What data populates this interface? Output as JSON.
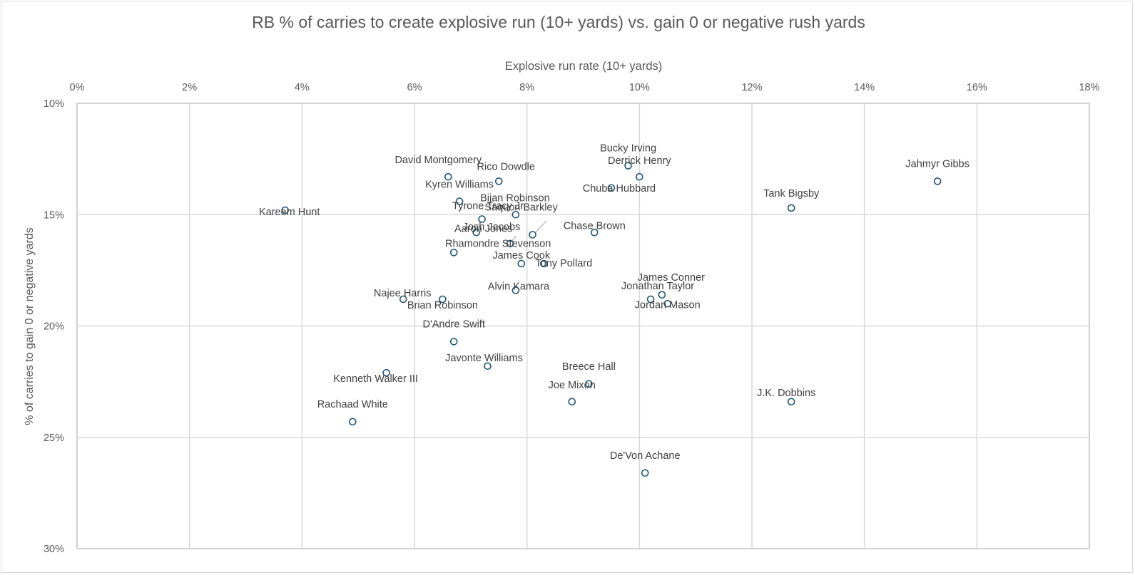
{
  "chart_data": {
    "type": "scatter",
    "title": "RB % of carries to create explosive run (10+ yards) vs. gain 0 or negative rush yards",
    "xlabel": "Explosive run rate (10+ yards)",
    "ylabel": "% of carries to gain 0 or negative yards",
    "xlim": [
      0,
      18
    ],
    "ylim": [
      10,
      30
    ],
    "y_reversed": true,
    "x_axis_position": "top",
    "grid": true,
    "x_ticks": [
      "0%",
      "2%",
      "4%",
      "6%",
      "8%",
      "10%",
      "12%",
      "14%",
      "16%",
      "18%"
    ],
    "y_ticks": [
      "10%",
      "15%",
      "20%",
      "25%",
      "30%"
    ],
    "marker_color": "#1f5673",
    "points": [
      {
        "name": "Kareem Hunt",
        "x": 3.7,
        "y": 14.8
      },
      {
        "name": "David Montgomery",
        "x": 6.6,
        "y": 13.3
      },
      {
        "name": "Rico Dowdle",
        "x": 7.5,
        "y": 13.5
      },
      {
        "name": "Kyren Williams",
        "x": 6.8,
        "y": 14.4
      },
      {
        "name": "Tyrone Tracy Jr.",
        "x": 7.2,
        "y": 15.2
      },
      {
        "name": "Bijan Robinson",
        "x": 7.8,
        "y": 15.0
      },
      {
        "name": "Saquon Barkley",
        "x": 8.1,
        "y": 15.9
      },
      {
        "name": "Aaron Jones",
        "x": 7.1,
        "y": 15.8
      },
      {
        "name": "Josh Jacobs",
        "x": 7.7,
        "y": 16.3
      },
      {
        "name": "Rhamondre Stevenson",
        "x": 6.7,
        "y": 16.7
      },
      {
        "name": "James Cook",
        "x": 7.9,
        "y": 17.2
      },
      {
        "name": "Tony Pollard",
        "x": 8.3,
        "y": 17.2
      },
      {
        "name": "Alvin Kamara",
        "x": 7.8,
        "y": 18.4
      },
      {
        "name": "Najee Harris",
        "x": 5.8,
        "y": 18.8
      },
      {
        "name": "Brian Robinson",
        "x": 6.5,
        "y": 18.8
      },
      {
        "name": "D'Andre Swift",
        "x": 6.7,
        "y": 20.7
      },
      {
        "name": "Javonte Williams",
        "x": 7.3,
        "y": 21.8
      },
      {
        "name": "Kenneth Walker III",
        "x": 5.5,
        "y": 22.1
      },
      {
        "name": "Rachaad White",
        "x": 4.9,
        "y": 24.3
      },
      {
        "name": "Bucky Irving",
        "x": 9.8,
        "y": 12.8
      },
      {
        "name": "Derrick Henry",
        "x": 10.0,
        "y": 13.3
      },
      {
        "name": "Chuba Hubbard",
        "x": 9.5,
        "y": 13.8
      },
      {
        "name": "Chase Brown",
        "x": 9.2,
        "y": 15.8
      },
      {
        "name": "James Conner",
        "x": 10.4,
        "y": 18.6
      },
      {
        "name": "Jonathan Taylor",
        "x": 10.2,
        "y": 18.8
      },
      {
        "name": "Jordan Mason",
        "x": 10.5,
        "y": 19.0
      },
      {
        "name": "Breece Hall",
        "x": 9.1,
        "y": 22.6
      },
      {
        "name": "Joe Mixon",
        "x": 8.8,
        "y": 23.4
      },
      {
        "name": "De'Von Achane",
        "x": 10.1,
        "y": 26.6
      },
      {
        "name": "Tank Bigsby",
        "x": 12.7,
        "y": 14.7
      },
      {
        "name": "J.K. Dobbins",
        "x": 12.7,
        "y": 23.4
      },
      {
        "name": "Jahmyr Gibbs",
        "x": 15.3,
        "y": 13.5
      }
    ]
  }
}
